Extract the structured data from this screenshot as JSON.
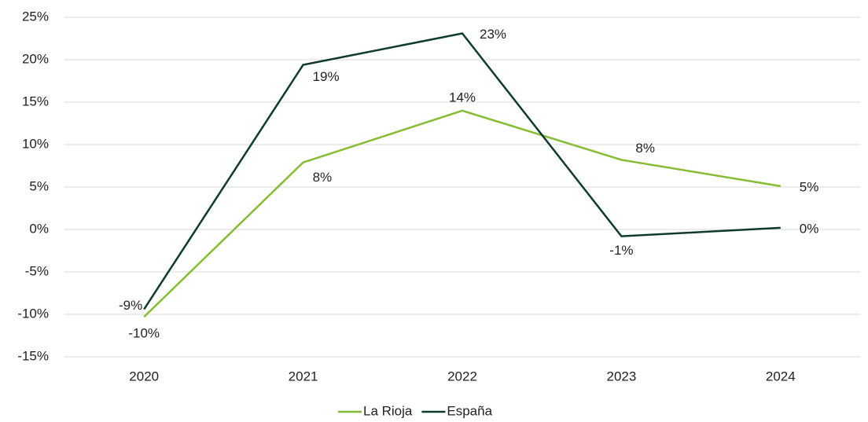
{
  "chart_data": {
    "type": "line",
    "categories": [
      "2020",
      "2021",
      "2022",
      "2023",
      "2024"
    ],
    "series": [
      {
        "name": "La Rioja",
        "color": "#84bd32",
        "values": [
          -10.3,
          7.9,
          14.0,
          8.2,
          5.1
        ],
        "value_labels": [
          "-10%",
          "8%",
          "14%",
          "8%",
          "5%"
        ]
      },
      {
        "name": "España",
        "color": "#0f3b2e",
        "values": [
          -9.4,
          19.4,
          23.1,
          -0.8,
          0.2
        ],
        "value_labels": [
          "-9%",
          "19%",
          "23%",
          "-1%",
          "0%"
        ]
      }
    ],
    "ylim": [
      -15,
      25
    ],
    "yticks": [
      {
        "value": -15,
        "label": "-15%"
      },
      {
        "value": -10,
        "label": "-10%"
      },
      {
        "value": -5,
        "label": "-5%"
      },
      {
        "value": 0,
        "label": "0%"
      },
      {
        "value": 5,
        "label": "5%"
      },
      {
        "value": 10,
        "label": "10%"
      },
      {
        "value": 15,
        "label": "15%"
      },
      {
        "value": 20,
        "label": "20%"
      },
      {
        "value": 25,
        "label": "25%"
      }
    ],
    "grid": true,
    "legend": "bottom"
  }
}
